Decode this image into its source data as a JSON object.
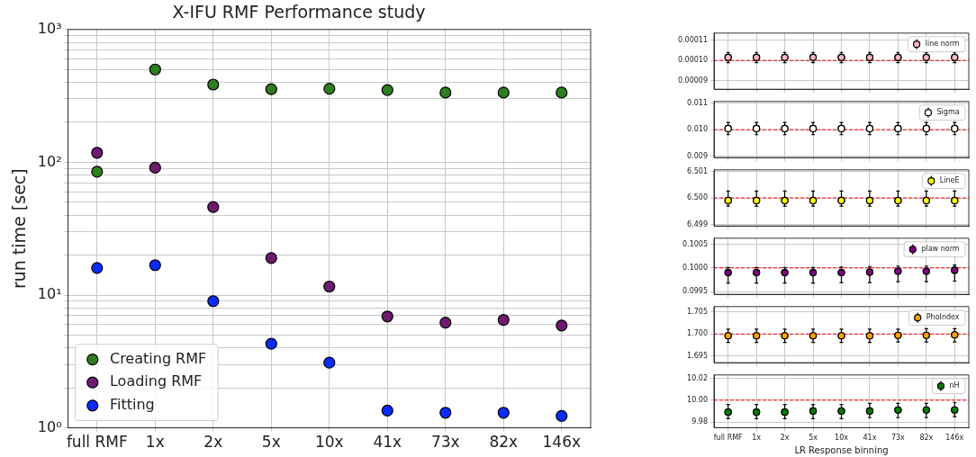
{
  "chart_data": [
    {
      "type": "scatter",
      "title": "X-IFU RMF Performance study",
      "ylabel": "run time [sec]",
      "categories": [
        "full RMF",
        "1x",
        "2x",
        "5x",
        "10x",
        "41x",
        "73x",
        "82x",
        "146x"
      ],
      "log": "y",
      "ylim": [
        1,
        1000
      ],
      "yticks": [
        {
          "value": 1,
          "label": "10⁰"
        },
        {
          "value": 2,
          "label": null
        },
        {
          "value": 3,
          "label": null
        },
        {
          "value": 4,
          "label": null
        },
        {
          "value": 5,
          "label": null
        },
        {
          "value": 6,
          "label": null
        },
        {
          "value": 7,
          "label": null
        },
        {
          "value": 8,
          "label": null
        },
        {
          "value": 9,
          "label": null
        },
        {
          "value": 10,
          "label": "10¹"
        },
        {
          "value": 20,
          "label": null
        },
        {
          "value": 30,
          "label": null
        },
        {
          "value": 40,
          "label": null
        },
        {
          "value": 50,
          "label": null
        },
        {
          "value": 60,
          "label": null
        },
        {
          "value": 70,
          "label": null
        },
        {
          "value": 80,
          "label": null
        },
        {
          "value": 90,
          "label": null
        },
        {
          "value": 100,
          "label": "10²"
        },
        {
          "value": 200,
          "label": null
        },
        {
          "value": 300,
          "label": null
        },
        {
          "value": 400,
          "label": null
        },
        {
          "value": 500,
          "label": null
        },
        {
          "value": 600,
          "label": null
        },
        {
          "value": 700,
          "label": null
        },
        {
          "value": 800,
          "label": null
        },
        {
          "value": 900,
          "label": null
        },
        {
          "value": 1000,
          "label": "10³"
        }
      ],
      "grid": true,
      "legend": "bottom left",
      "marker": "circle",
      "series": [
        {
          "name": "Creating RMF",
          "color": "#2e7d1f",
          "values": [
            85,
            500,
            385,
            355,
            358,
            350,
            335,
            335,
            335
          ]
        },
        {
          "name": "Loading RMF",
          "color": "#6e1a6e",
          "values": [
            118,
            91,
            46,
            19,
            11.6,
            6.9,
            6.2,
            6.5,
            5.9
          ]
        },
        {
          "name": "Fitting",
          "color": "#0a2bff",
          "values": [
            16,
            16.8,
            9.0,
            4.3,
            3.1,
            1.35,
            1.3,
            1.3,
            1.23
          ]
        }
      ]
    },
    {
      "type": "scatter",
      "categories": [
        null,
        null,
        null,
        null,
        null,
        null,
        null,
        null,
        null
      ],
      "ylim": [
        8.57e-05,
        0.0001136
      ],
      "yticks": [
        {
          "value": 9e-05,
          "label": "0.00009"
        },
        {
          "value": 0.0001,
          "label": "0.00010"
        },
        {
          "value": 0.00011,
          "label": "0.00011"
        }
      ],
      "grid": true,
      "legend": "top right",
      "marker": "circle",
      "tick_labels": "y",
      "ref_lines": [
        {
          "axis": "y",
          "value": 0.0001,
          "color": "#ff0000",
          "line_style": "dashed"
        }
      ],
      "series": [
        {
          "name": "line norm",
          "color": "#ffb6c1",
          "values": [
            0.0001015,
            0.0001015,
            0.0001015,
            0.0001015,
            0.0001015,
            0.0001015,
            0.0001015,
            0.0001015,
            0.0001015
          ],
          "errors": [
            [
              9.89e-05,
              0.000104
            ],
            [
              9.89e-05,
              0.000104
            ],
            [
              9.89e-05,
              0.000104
            ],
            [
              9.89e-05,
              0.000104
            ],
            [
              9.89e-05,
              0.000104
            ],
            [
              9.89e-05,
              0.000104
            ],
            [
              9.89e-05,
              0.000104
            ],
            [
              9.89e-05,
              0.000104
            ],
            [
              9.89e-05,
              0.000104
            ]
          ]
        }
      ]
    },
    {
      "type": "scatter",
      "categories": [
        null,
        null,
        null,
        null,
        null,
        null,
        null,
        null,
        null
      ],
      "ylim": [
        0.00895,
        0.01106
      ],
      "yticks": [
        {
          "value": 0.009,
          "label": "0.009"
        },
        {
          "value": 0.01,
          "label": "0.010"
        },
        {
          "value": 0.011,
          "label": "0.011"
        }
      ],
      "grid": true,
      "legend": "top right",
      "marker": "circle",
      "tick_labels": "y",
      "ref_lines": [
        {
          "axis": "y",
          "value": 0.01,
          "color": "#ff0000",
          "line_style": "dashed"
        }
      ],
      "series": [
        {
          "name": "Sigma",
          "color": "#ffffff",
          "values": [
            0.01004,
            0.01004,
            0.01004,
            0.01004,
            0.01004,
            0.01004,
            0.01004,
            0.01004,
            0.01004
          ],
          "errors": [
            [
              0.00981,
              0.01027
            ],
            [
              0.00981,
              0.01027
            ],
            [
              0.00981,
              0.01027
            ],
            [
              0.00981,
              0.01027
            ],
            [
              0.00981,
              0.01027
            ],
            [
              0.00981,
              0.01027
            ],
            [
              0.00981,
              0.01027
            ],
            [
              0.00981,
              0.01027
            ],
            [
              0.00981,
              0.01027
            ]
          ]
        }
      ]
    },
    {
      "type": "scatter",
      "categories": [
        null,
        null,
        null,
        null,
        null,
        null,
        null,
        null,
        null
      ],
      "ylim": [
        6.49894,
        6.50106
      ],
      "yticks": [
        {
          "value": 6.499,
          "label": "6.499"
        },
        {
          "value": 6.5,
          "label": "6.500"
        },
        {
          "value": 6.501,
          "label": "6.501"
        }
      ],
      "grid": true,
      "legend": "top right",
      "marker": "circle",
      "tick_labels": "y",
      "ref_lines": [
        {
          "axis": "y",
          "value": 6.5,
          "color": "#ff0000",
          "line_style": "dashed"
        }
      ],
      "series": [
        {
          "name": "LineE",
          "color": "#ffff00",
          "values": [
            6.4999,
            6.4999,
            6.4999,
            6.4999,
            6.4999,
            6.4999,
            6.4999,
            6.4999,
            6.4999
          ],
          "errors": [
            [
              6.49969,
              6.50026
            ],
            [
              6.49969,
              6.50026
            ],
            [
              6.49969,
              6.50026
            ],
            [
              6.49969,
              6.50026
            ],
            [
              6.49969,
              6.50026
            ],
            [
              6.49969,
              6.50026
            ],
            [
              6.49969,
              6.50026
            ],
            [
              6.49969,
              6.50026
            ],
            [
              6.49969,
              6.50026
            ]
          ]
        }
      ]
    },
    {
      "type": "scatter",
      "categories": [
        null,
        null,
        null,
        null,
        null,
        null,
        null,
        null,
        null
      ],
      "ylim": [
        0.09944,
        0.10063
      ],
      "yticks": [
        {
          "value": 0.0995,
          "label": "0.0995"
        },
        {
          "value": 0.1,
          "label": "0.1000"
        },
        {
          "value": 0.1005,
          "label": "0.1005"
        }
      ],
      "grid": true,
      "legend": "top right",
      "marker": "circle",
      "tick_labels": "y",
      "ref_lines": [
        {
          "axis": "y",
          "value": 0.1,
          "color": "#ff0000",
          "line_style": "dashed"
        }
      ],
      "series": [
        {
          "name": "plaw norm",
          "color": "#800080",
          "values": [
            0.0999,
            0.0999,
            0.0999,
            0.0999,
            0.0999,
            0.09991,
            0.09993,
            0.09993,
            0.09995
          ],
          "errors": [
            [
              0.09968,
              0.10001
            ],
            [
              0.09968,
              0.10001
            ],
            [
              0.09968,
              0.10001
            ],
            [
              0.09968,
              0.10001
            ],
            [
              0.09969,
              0.10002
            ],
            [
              0.09969,
              0.10003
            ],
            [
              0.09971,
              0.10004
            ],
            [
              0.09971,
              0.10004
            ],
            [
              0.09972,
              0.10006
            ]
          ]
        }
      ]
    },
    {
      "type": "scatter",
      "categories": [
        null,
        null,
        null,
        null,
        null,
        null,
        null,
        null,
        null
      ],
      "ylim": [
        1.6935,
        1.7062
      ],
      "yticks": [
        {
          "value": 1.695,
          "label": "1.695"
        },
        {
          "value": 1.7,
          "label": "1.700"
        },
        {
          "value": 1.705,
          "label": "1.705"
        }
      ],
      "grid": true,
      "legend": "top right",
      "marker": "circle",
      "tick_labels": "y",
      "ref_lines": [
        {
          "axis": "y",
          "value": 1.7,
          "color": "#ff0000",
          "line_style": "dashed"
        }
      ],
      "series": [
        {
          "name": "PhoIndex",
          "color": "#ffa500",
          "values": [
            1.6996,
            1.6996,
            1.6996,
            1.6996,
            1.6996,
            1.6996,
            1.6997,
            1.6997,
            1.6998
          ],
          "errors": [
            [
              1.6981,
              1.7011
            ],
            [
              1.6981,
              1.7011
            ],
            [
              1.6981,
              1.7011
            ],
            [
              1.6981,
              1.7011
            ],
            [
              1.6981,
              1.7011
            ],
            [
              1.6981,
              1.7011
            ],
            [
              1.6982,
              1.7011
            ],
            [
              1.6982,
              1.7012
            ],
            [
              1.6982,
              1.7012
            ]
          ]
        }
      ]
    },
    {
      "type": "scatter",
      "xlabel": "LR Response binning",
      "categories": [
        "full RMF",
        "1x",
        "2x",
        "5x",
        "10x",
        "41x",
        "73x",
        "82x",
        "146x"
      ],
      "ylim": [
        9.9748,
        10.0231
      ],
      "yticks": [
        {
          "value": 9.98,
          "label": "9.98"
        },
        {
          "value": 10,
          "label": "10.00"
        },
        {
          "value": 10.02,
          "label": "10.02"
        }
      ],
      "grid": true,
      "legend": "top right",
      "marker": "circle",
      "ref_lines": [
        {
          "axis": "y",
          "value": 10,
          "color": "#ff0000",
          "line_style": "dashed"
        }
      ],
      "series": [
        {
          "name": "nH",
          "color": "#008000",
          "values": [
            9.989,
            9.989,
            9.989,
            9.99,
            9.99,
            9.99,
            9.991,
            9.991,
            9.991
          ],
          "errors": [
            [
              9.983,
              9.996
            ],
            [
              9.983,
              9.996
            ],
            [
              9.983,
              9.996
            ],
            [
              9.983,
              9.996
            ],
            [
              9.983,
              9.996
            ],
            [
              9.984,
              9.997
            ],
            [
              9.984,
              9.997
            ],
            [
              9.984,
              9.997
            ],
            [
              9.985,
              9.998
            ]
          ]
        }
      ]
    }
  ]
}
